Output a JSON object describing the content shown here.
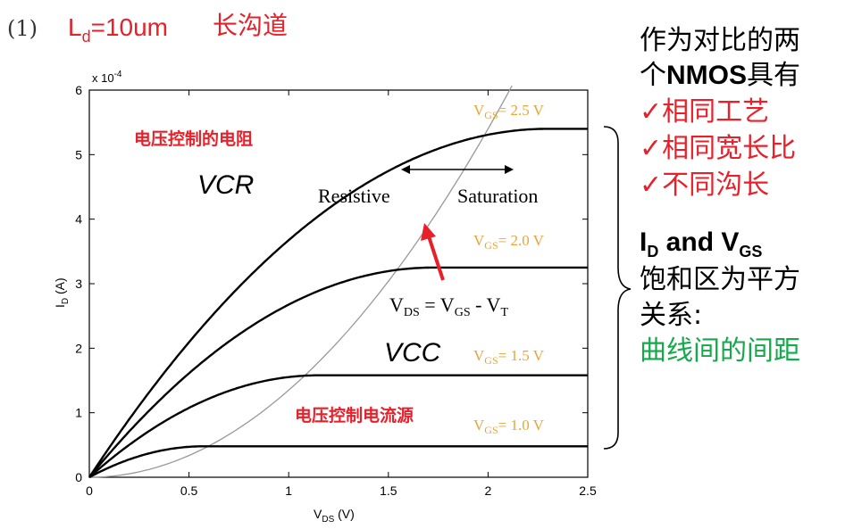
{
  "heading": {
    "number": "(1)",
    "main": "L",
    "sub": "d",
    "rest": "=10um",
    "cn": "长沟道"
  },
  "notes": {
    "line1": "作为对比的两",
    "line2_pre": "个",
    "line2_bold": "NMOS",
    "line2_post": "具有",
    "check1": "✓相同工艺",
    "check2": "✓相同宽长比",
    "check3": "✓不同沟长",
    "id_main": "I",
    "id_sub": "D",
    "and": " and V",
    "vgs_sub": "GS",
    "line7": "饱和区为平方",
    "line8": "关系:",
    "line9": "曲线间的间距"
  },
  "chart_data": {
    "type": "line",
    "xlabel_main": "V",
    "xlabel_sub": "DS",
    "xlabel_unit": " (V)",
    "ylabel_main": "I",
    "ylabel_sub": "D",
    "ylabel_unit": " (A)",
    "y_multiplier": "x 10",
    "y_multiplier_exp": "-4",
    "xlim": [
      0,
      2.5
    ],
    "ylim": [
      0,
      6
    ],
    "xticks": [
      "0",
      "0.5",
      "1",
      "1.5",
      "2",
      "2.5"
    ],
    "yticks": [
      "0",
      "1",
      "2",
      "3",
      "4",
      "5",
      "6"
    ],
    "vt": 0.5,
    "series": [
      {
        "name": "VGS=1.0 V",
        "label_v": "V",
        "label_sub": "GS",
        "label_val": "= 1.0 V",
        "vgs": 1.0,
        "isat": 0.48
      },
      {
        "name": "VGS=1.5 V",
        "label_v": "V",
        "label_sub": "GS",
        "label_val": "= 1.5 V",
        "vgs": 1.5,
        "isat": 1.58
      },
      {
        "name": "VGS=2.0 V",
        "label_v": "V",
        "label_sub": "GS",
        "label_val": "= 2.0 V",
        "vgs": 2.0,
        "isat": 3.25
      },
      {
        "name": "VGS=2.5 V",
        "label_v": "V",
        "label_sub": "GS",
        "label_val": "= 2.5 V",
        "vgs": 2.5,
        "isat": 5.4
      }
    ],
    "boundary": {
      "name": "VDS = VGS - VT",
      "coef": 1.35
    },
    "annotations": {
      "vcr_cn": "电压控制的电阻",
      "vcr": "VCR",
      "resistive": "Resistive",
      "saturation": "Saturation",
      "vcc": "VCC",
      "vccs_cn": "电压控制电流源",
      "eq_v1": "V",
      "eq_s1": "DS",
      "eq_mid": " = V",
      "eq_s2": "GS",
      "eq_mid2": " - V",
      "eq_s3": "T"
    },
    "colors": {
      "curve": "#000000",
      "boundary": "#999999",
      "label": "#e9a43a",
      "red": "#e8202a",
      "arrow": "#e8202a"
    }
  }
}
